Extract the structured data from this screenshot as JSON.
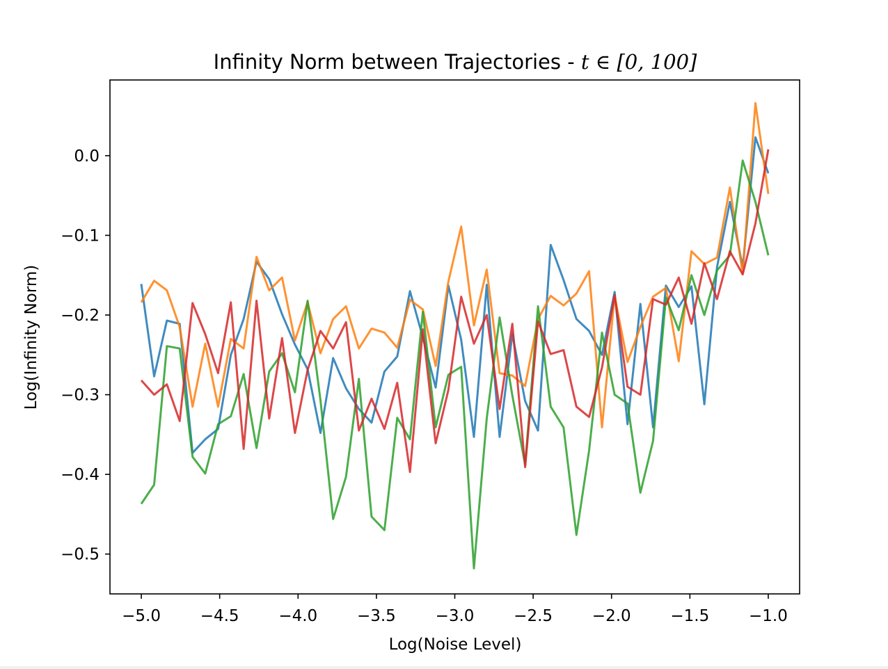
{
  "chart_data": {
    "type": "line",
    "title": "Infinity Norm between Trajectories - t ∈ [0, 100]",
    "title_prefix": "Infinity Norm between Trajectories - ",
    "title_math": "t ∈ [0, 100]",
    "xlabel": "Log(Noise Level)",
    "ylabel": "Log(Infinity Norm)",
    "xlim": [
      -5.2,
      -0.8
    ],
    "ylim": [
      -0.55,
      0.095
    ],
    "xticks": [
      -5.0,
      -4.5,
      -4.0,
      -3.5,
      -3.0,
      -2.5,
      -2.0,
      -1.5,
      -1.0
    ],
    "xtick_labels": [
      "−5.0",
      "−4.5",
      "−4.0",
      "−3.5",
      "−3.0",
      "−2.5",
      "−2.0",
      "−1.5",
      "−1.0"
    ],
    "yticks": [
      0.0,
      -0.1,
      -0.2,
      -0.3,
      -0.4,
      -0.5
    ],
    "ytick_labels": [
      "0.0",
      "−0.1",
      "−0.2",
      "−0.3",
      "−0.4",
      "−0.5"
    ],
    "grid": false,
    "legend": "none",
    "x": [
      -5.0,
      -4.918,
      -4.837,
      -4.755,
      -4.673,
      -4.592,
      -4.51,
      -4.429,
      -4.347,
      -4.265,
      -4.184,
      -4.102,
      -4.02,
      -3.939,
      -3.857,
      -3.776,
      -3.694,
      -3.612,
      -3.531,
      -3.449,
      -3.367,
      -3.286,
      -3.204,
      -3.122,
      -3.041,
      -2.959,
      -2.878,
      -2.796,
      -2.714,
      -2.633,
      -2.551,
      -2.469,
      -2.388,
      -2.306,
      -2.224,
      -2.143,
      -2.061,
      -1.98,
      -1.898,
      -1.816,
      -1.735,
      -1.653,
      -1.571,
      -1.49,
      -1.408,
      -1.327,
      -1.245,
      -1.163,
      -1.082,
      -1.0
    ],
    "series": [
      {
        "color": "#1f77b4",
        "values": [
          -0.161,
          -0.277,
          -0.207,
          -0.211,
          -0.373,
          -0.356,
          -0.343,
          -0.25,
          -0.205,
          -0.133,
          -0.155,
          -0.199,
          -0.237,
          -0.268,
          -0.348,
          -0.254,
          -0.292,
          -0.318,
          -0.335,
          -0.271,
          -0.252,
          -0.17,
          -0.228,
          -0.291,
          -0.163,
          -0.231,
          -0.353,
          -0.162,
          -0.353,
          -0.224,
          -0.308,
          -0.345,
          -0.112,
          -0.156,
          -0.205,
          -0.22,
          -0.25,
          -0.171,
          -0.337,
          -0.186,
          -0.341,
          -0.163,
          -0.19,
          -0.164,
          -0.312,
          -0.14,
          -0.058,
          -0.14,
          0.023,
          -0.022
        ]
      },
      {
        "color": "#ff7f0e",
        "values": [
          -0.184,
          -0.157,
          -0.169,
          -0.215,
          -0.315,
          -0.236,
          -0.315,
          -0.23,
          -0.242,
          -0.127,
          -0.169,
          -0.153,
          -0.232,
          -0.184,
          -0.248,
          -0.205,
          -0.189,
          -0.242,
          -0.217,
          -0.222,
          -0.241,
          -0.181,
          -0.193,
          -0.264,
          -0.158,
          -0.089,
          -0.213,
          -0.143,
          -0.273,
          -0.276,
          -0.289,
          -0.205,
          -0.176,
          -0.188,
          -0.173,
          -0.145,
          -0.341,
          -0.176,
          -0.259,
          -0.215,
          -0.177,
          -0.166,
          -0.258,
          -0.12,
          -0.136,
          -0.128,
          -0.04,
          -0.148,
          0.066,
          -0.048
        ]
      },
      {
        "color": "#2ca02c",
        "values": [
          -0.437,
          -0.413,
          -0.239,
          -0.242,
          -0.378,
          -0.399,
          -0.337,
          -0.327,
          -0.274,
          -0.367,
          -0.271,
          -0.248,
          -0.297,
          -0.182,
          -0.307,
          -0.456,
          -0.403,
          -0.28,
          -0.453,
          -0.47,
          -0.329,
          -0.356,
          -0.196,
          -0.341,
          -0.275,
          -0.265,
          -0.518,
          -0.33,
          -0.203,
          -0.301,
          -0.388,
          -0.189,
          -0.315,
          -0.341,
          -0.476,
          -0.37,
          -0.222,
          -0.3,
          -0.311,
          -0.423,
          -0.358,
          -0.178,
          -0.219,
          -0.15,
          -0.2,
          -0.144,
          -0.125,
          -0.006,
          -0.058,
          -0.125
        ]
      },
      {
        "color": "#d62728",
        "values": [
          -0.282,
          -0.3,
          -0.287,
          -0.333,
          -0.185,
          -0.224,
          -0.273,
          -0.184,
          -0.368,
          -0.182,
          -0.33,
          -0.229,
          -0.348,
          -0.269,
          -0.22,
          -0.242,
          -0.209,
          -0.345,
          -0.305,
          -0.343,
          -0.285,
          -0.397,
          -0.218,
          -0.361,
          -0.294,
          -0.177,
          -0.236,
          -0.2,
          -0.318,
          -0.211,
          -0.391,
          -0.208,
          -0.249,
          -0.244,
          -0.315,
          -0.328,
          -0.266,
          -0.175,
          -0.29,
          -0.3,
          -0.18,
          -0.187,
          -0.153,
          -0.211,
          -0.135,
          -0.18,
          -0.12,
          -0.149,
          -0.085,
          0.008
        ]
      }
    ]
  }
}
